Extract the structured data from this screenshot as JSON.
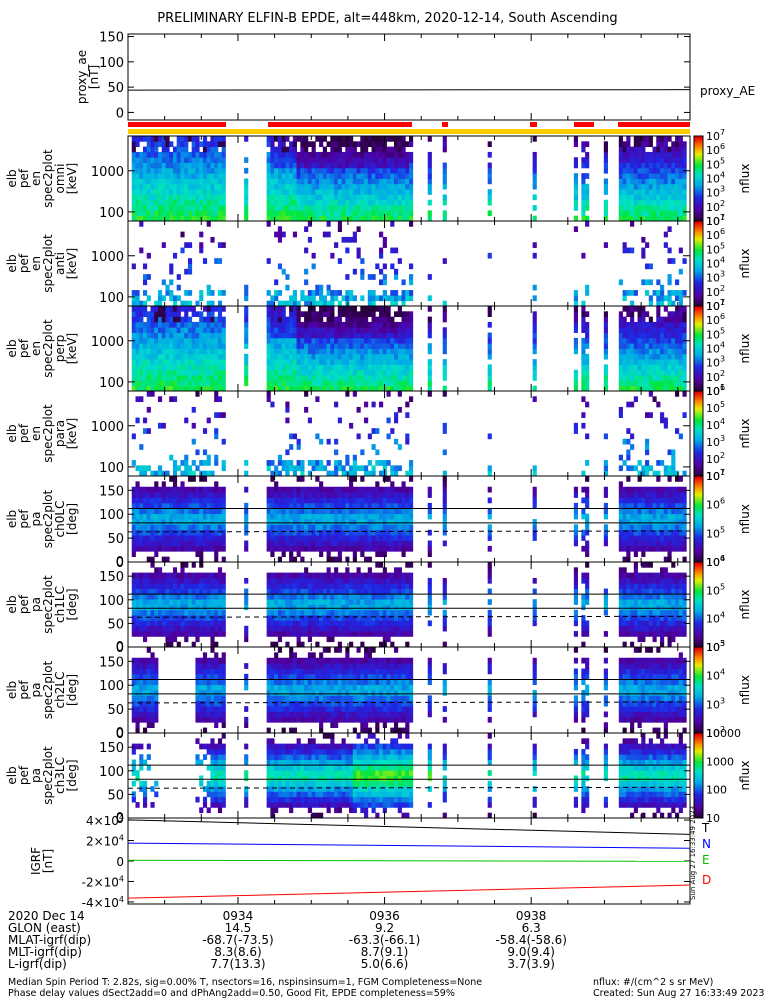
{
  "title": "PRELIMINARY ELFIN-B EPDE, alt=448km, 2020-12-14, South Ascending",
  "colors": {
    "red_bar": "#ff0000",
    "yellow_bar": "#ffcc00",
    "T": "#000000",
    "N": "#0000ff",
    "E": "#00c000",
    "D": "#ff0000"
  },
  "chart_data": [
    {
      "type": "line",
      "name": "proxy_ae",
      "ylabel": "proxy_ae\n[nT]",
      "ylim": [
        -15,
        155
      ],
      "yticks": [
        0,
        50,
        100,
        150
      ],
      "series": [
        {
          "name": "proxy_AE",
          "x": [
            "09:32:30",
            "09:40:10"
          ],
          "values": [
            44,
            45
          ]
        }
      ]
    },
    {
      "type": "heatmap",
      "name": "energy-spectrogram-omni",
      "ylabel": "elb\npef\nen\nspec2plot\nomni\n[keV]",
      "yscale": "log",
      "yticks": [
        100,
        1000
      ],
      "colorbar": {
        "label": "nflux",
        "scale": "log",
        "ticks": [
          "10^1",
          "10^2",
          "10^3",
          "10^4",
          "10^5",
          "10^6",
          "10^7"
        ]
      }
    },
    {
      "type": "heatmap",
      "name": "energy-spectrogram-anti",
      "ylabel": "elb\npef\nen\nspec2plot\nanti\n[keV]",
      "yscale": "log",
      "yticks": [
        100,
        1000
      ],
      "colorbar": {
        "label": "nflux",
        "scale": "log",
        "ticks": [
          "10^1",
          "10^2",
          "10^3",
          "10^4",
          "10^5",
          "10^6",
          "10^7"
        ]
      }
    },
    {
      "type": "heatmap",
      "name": "energy-spectrogram-perp",
      "ylabel": "elb\npef\nen\nspec2plot\nperp\n[keV]",
      "yscale": "log",
      "yticks": [
        100,
        1000
      ],
      "colorbar": {
        "label": "nflux",
        "scale": "log",
        "ticks": [
          "10^1",
          "10^2",
          "10^3",
          "10^4",
          "10^5",
          "10^6",
          "10^7"
        ]
      }
    },
    {
      "type": "heatmap",
      "name": "energy-spectrogram-para",
      "ylabel": "elb\npef\nen\nspec2plot\npara\n[keV]",
      "yscale": "log",
      "yticks": [
        100,
        1000
      ],
      "colorbar": {
        "label": "nflux",
        "scale": "log",
        "ticks": [
          "10^1",
          "10^2",
          "10^3",
          "10^4",
          "10^5",
          "10^6"
        ]
      }
    },
    {
      "type": "heatmap",
      "name": "pitch-angle-ch0",
      "ylabel": "elb\npef\npa\nspec2plot\nch0LC\n[deg]",
      "ylim": [
        0,
        180
      ],
      "yticks": [
        0,
        50,
        100,
        150
      ],
      "colorbar": {
        "label": "nflux",
        "scale": "log",
        "ticks": [
          "10^4",
          "10^5",
          "10^6",
          "10^7"
        ]
      }
    },
    {
      "type": "heatmap",
      "name": "pitch-angle-ch1",
      "ylabel": "elb\npef\npa\nspec2plot\nch1LC\n[deg]",
      "ylim": [
        0,
        180
      ],
      "yticks": [
        0,
        50,
        100,
        150
      ],
      "colorbar": {
        "label": "nflux",
        "scale": "log",
        "ticks": [
          "10^3",
          "10^4",
          "10^5",
          "10^6"
        ]
      }
    },
    {
      "type": "heatmap",
      "name": "pitch-angle-ch2",
      "ylabel": "elb\npef\npa\nspec2plot\nch2LC\n[deg]",
      "ylim": [
        0,
        180
      ],
      "yticks": [
        0,
        50,
        100,
        150
      ],
      "colorbar": {
        "label": "nflux",
        "scale": "log",
        "ticks": [
          "10^2",
          "10^3",
          "10^4",
          "10^5"
        ]
      }
    },
    {
      "type": "heatmap",
      "name": "pitch-angle-ch3",
      "ylabel": "elb\npef\npa\nspec2plot\nch3LC\n[deg]",
      "ylim": [
        0,
        180
      ],
      "yticks": [
        0,
        50,
        100,
        150
      ],
      "colorbar": {
        "label": "nflux",
        "scale": "log",
        "ticks": [
          "10",
          "100",
          "1000",
          "10000"
        ]
      }
    },
    {
      "type": "line",
      "name": "igrf",
      "ylabel": "IGRF\n[nT]",
      "ylim": [
        -42000,
        42000
      ],
      "yticks": [
        "-4×10^4",
        "-2×10^4",
        "0",
        "2×10^4",
        "4×10^4"
      ],
      "x": [
        "09:32:30",
        "09:40:10"
      ],
      "series": [
        {
          "name": "T",
          "values": [
            40200,
            26000
          ]
        },
        {
          "name": "N",
          "values": [
            17500,
            12500
          ]
        },
        {
          "name": "E",
          "values": [
            700,
            -300
          ]
        },
        {
          "name": "D",
          "values": [
            -36300,
            -23500
          ]
        }
      ]
    }
  ],
  "x_axis": {
    "ticks": [
      "0934",
      "0936",
      "0938"
    ],
    "rows": [
      {
        "label": "2020 Dec 14",
        "values": [
          "0934",
          "0936",
          "0938"
        ]
      },
      {
        "label": "GLON (east)",
        "values": [
          "14.5",
          "9.2",
          "6.3"
        ]
      },
      {
        "label": "MLAT-igrf(dip)",
        "values": [
          "-68.7(-73.5)",
          "-63.3(-66.1)",
          "-58.4(-58.6)"
        ]
      },
      {
        "label": "MLT-igrf(dip)",
        "values": [
          "8.3(8.6)",
          "8.7(9.1)",
          "9.0(9.4)"
        ]
      },
      {
        "label": "L-igrf(dip)",
        "values": [
          "7.7(13.3)",
          "5.0(6.6)",
          "3.7(3.9)"
        ]
      }
    ]
  },
  "side_stamp": "Sun Aug 27 16:33:49 2023",
  "footer": {
    "line1": "Median Spin Period T: 2.82s, sig=0.00% T, nsectors=16, nspinsinsum=1, FGM Completeness=None",
    "line2": "Phase delay values dSect2add=0 and dPhAng2add=0.50, Good Fit, EPDE completeness=59%",
    "units": "nflux: #/(cm^2 s sr MeV)",
    "created": "Created: Sun Aug 27 16:33:49 2023"
  }
}
